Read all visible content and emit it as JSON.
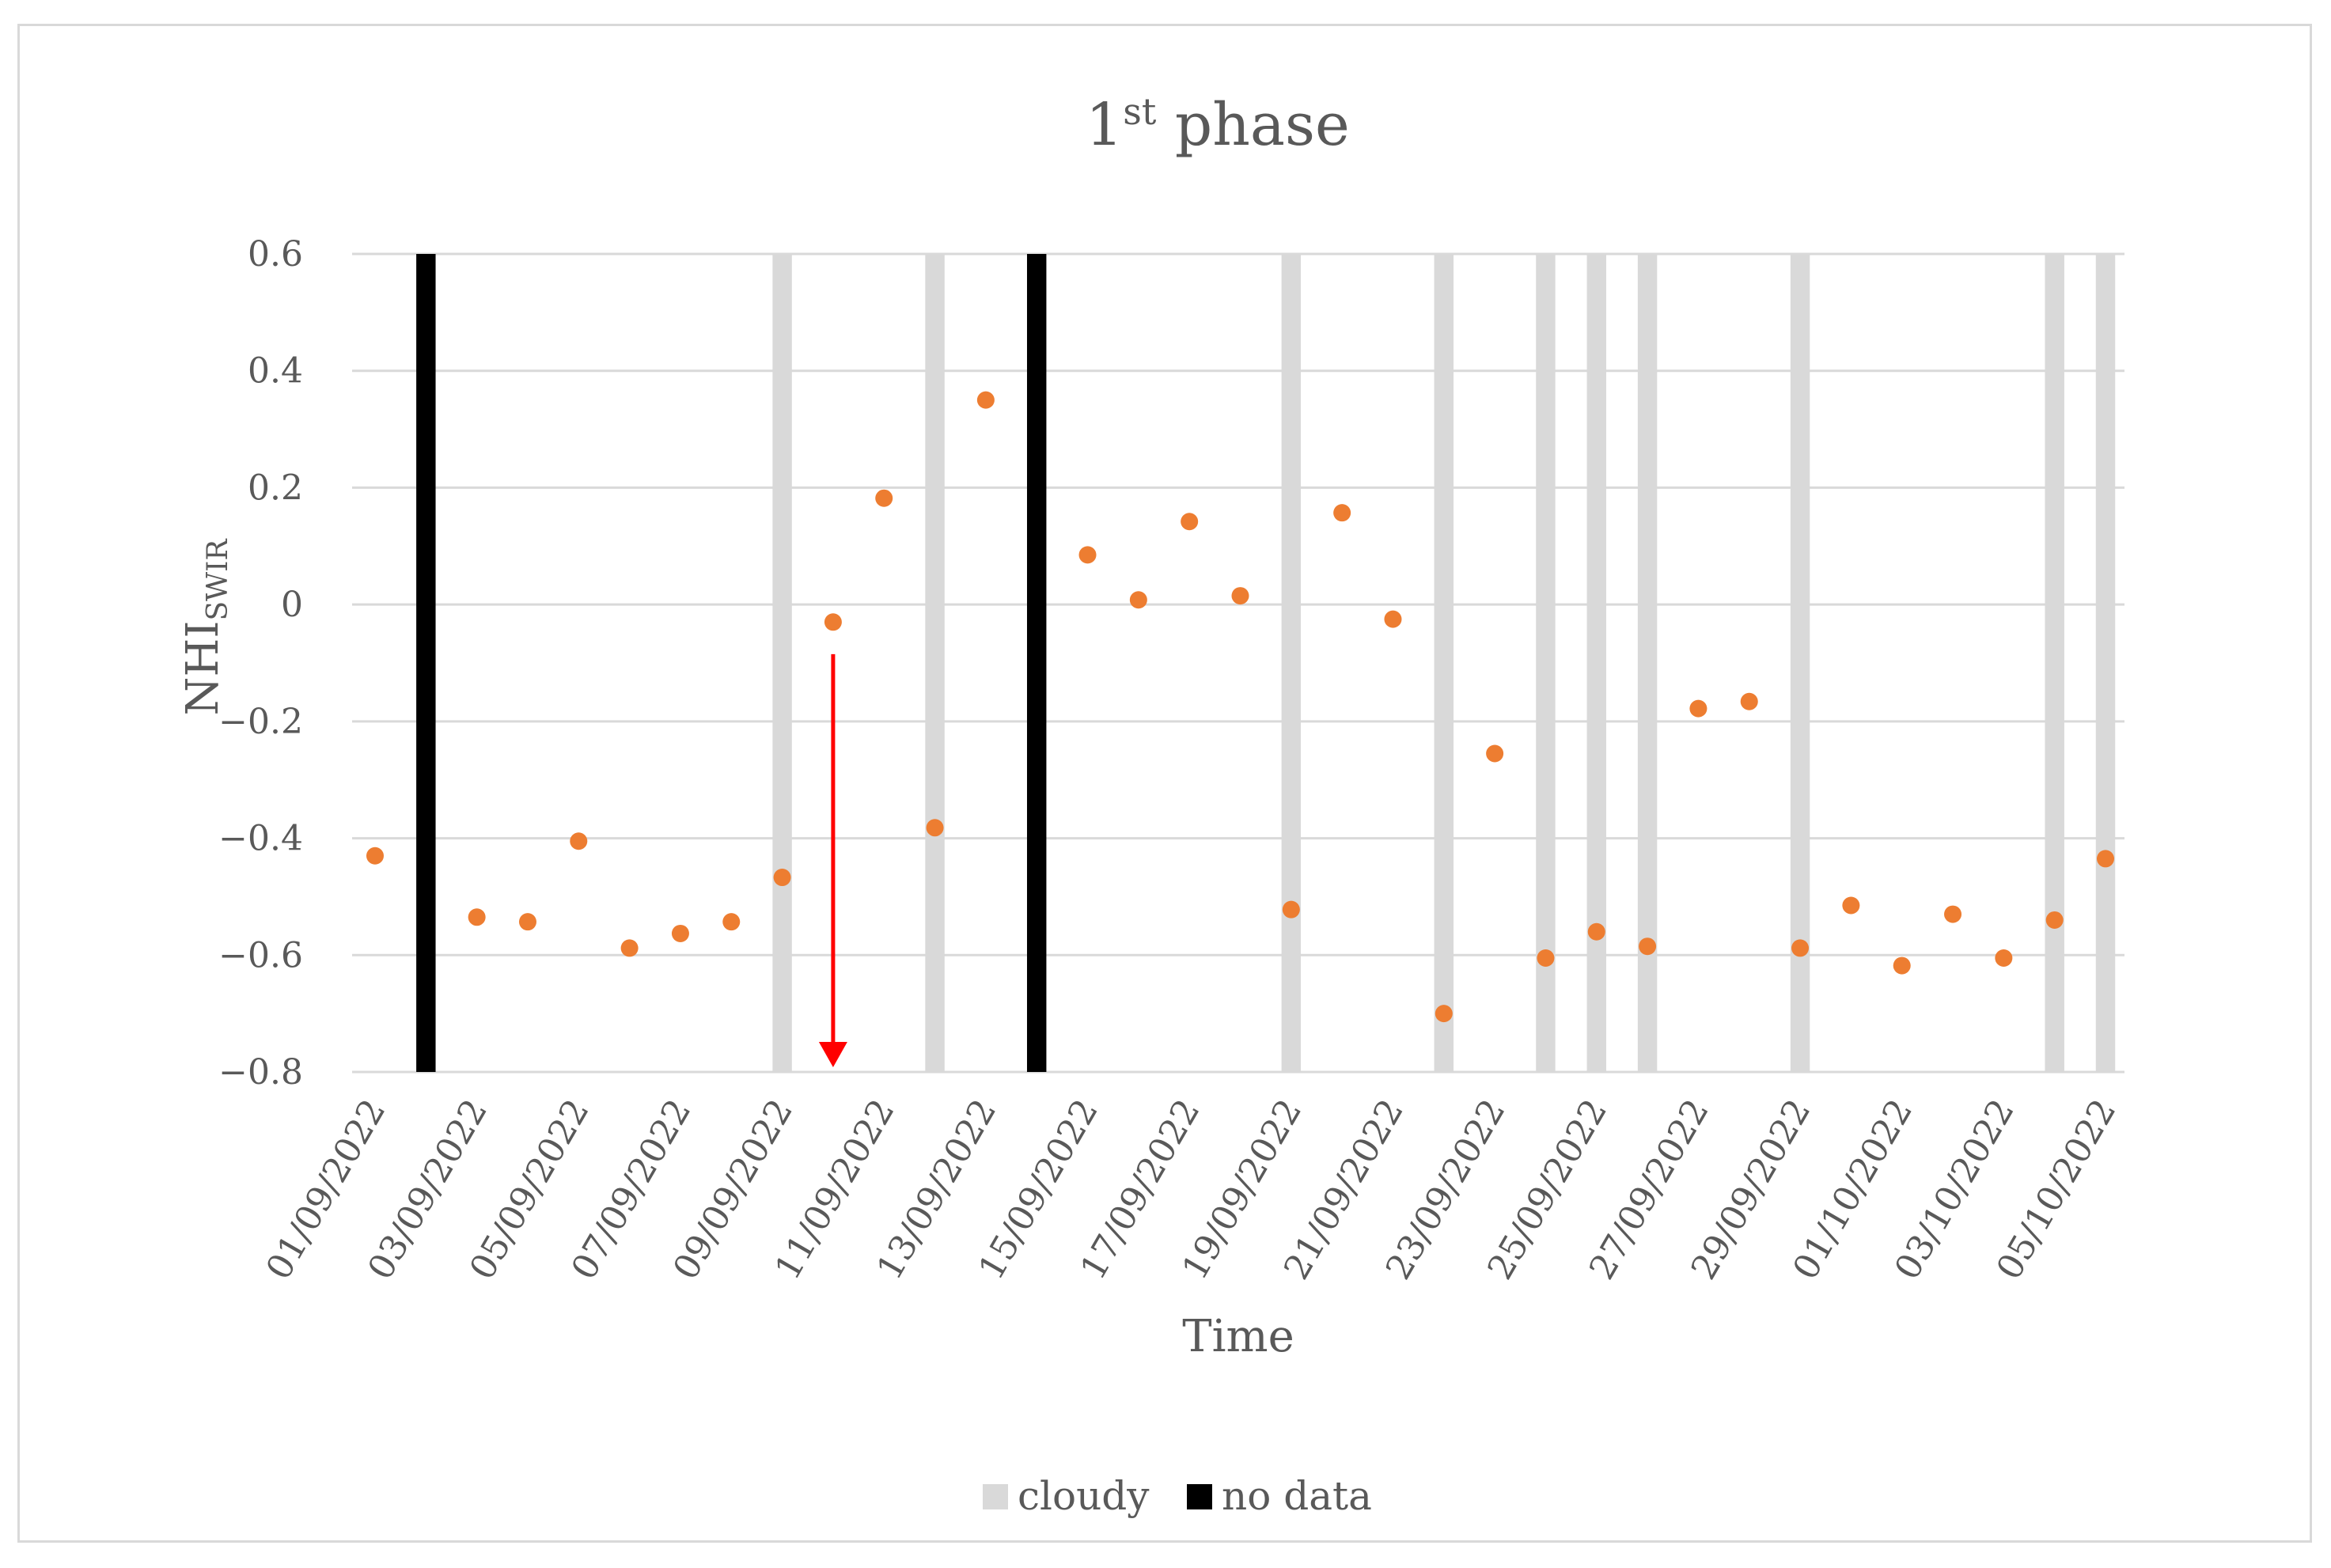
{
  "chart_data": {
    "type": "scatter",
    "title": "1st phase",
    "title_main": "1",
    "title_sup": "st",
    "title_rest": " phase",
    "xlabel": "Time",
    "ylabel": "NHI",
    "ylabel_sub": "SWIR",
    "ylim": [
      -0.8,
      0.6
    ],
    "yticks": [
      0.6,
      0.4,
      0.2,
      0,
      -0.2,
      -0.4,
      -0.6,
      -0.8
    ],
    "ytick_labels": [
      "0.6",
      "0.4",
      "0.2",
      "0",
      "−0.2",
      "−0.4",
      "−0.6",
      "−0.8"
    ],
    "xlim": [
      "2022-09-01",
      "2022-10-05"
    ],
    "xtick_labels": [
      "01/09/2022",
      "03/09/2022",
      "05/09/2022",
      "07/09/2022",
      "09/09/2022",
      "11/09/2022",
      "13/09/2022",
      "15/09/2022",
      "17/09/2022",
      "19/09/2022",
      "21/09/2022",
      "23/09/2022",
      "25/09/2022",
      "27/09/2022",
      "29/09/2022",
      "01/10/2022",
      "03/10/2022",
      "05/10/2022"
    ],
    "grid": true,
    "legend_position": "bottom",
    "series": [
      {
        "name": "NHI",
        "color": "#ed7d31",
        "points": [
          {
            "x": "2022-09-01",
            "y": -0.43
          },
          {
            "x": "2022-09-03",
            "y": -0.535
          },
          {
            "x": "2022-09-04",
            "y": -0.543
          },
          {
            "x": "2022-09-05",
            "y": -0.405
          },
          {
            "x": "2022-09-06",
            "y": -0.588
          },
          {
            "x": "2022-09-07",
            "y": -0.563
          },
          {
            "x": "2022-09-08",
            "y": -0.543
          },
          {
            "x": "2022-09-09",
            "y": -0.467
          },
          {
            "x": "2022-09-10",
            "y": -0.03
          },
          {
            "x": "2022-09-11",
            "y": 0.182
          },
          {
            "x": "2022-09-12",
            "y": -0.382
          },
          {
            "x": "2022-09-13",
            "y": 0.35
          },
          {
            "x": "2022-09-15",
            "y": 0.085
          },
          {
            "x": "2022-09-16",
            "y": 0.008
          },
          {
            "x": "2022-09-17",
            "y": 0.142
          },
          {
            "x": "2022-09-18",
            "y": 0.015
          },
          {
            "x": "2022-09-19",
            "y": -0.522
          },
          {
            "x": "2022-09-20",
            "y": 0.157
          },
          {
            "x": "2022-09-21",
            "y": -0.025
          },
          {
            "x": "2022-09-22",
            "y": -0.7
          },
          {
            "x": "2022-09-23",
            "y": -0.255
          },
          {
            "x": "2022-09-24",
            "y": -0.605
          },
          {
            "x": "2022-09-25",
            "y": -0.56
          },
          {
            "x": "2022-09-26",
            "y": -0.585
          },
          {
            "x": "2022-09-27",
            "y": -0.178
          },
          {
            "x": "2022-09-28",
            "y": -0.166
          },
          {
            "x": "2022-09-29",
            "y": -0.588
          },
          {
            "x": "2022-09-30",
            "y": -0.515
          },
          {
            "x": "2022-10-01",
            "y": -0.618
          },
          {
            "x": "2022-10-02",
            "y": -0.53
          },
          {
            "x": "2022-10-03",
            "y": -0.605
          },
          {
            "x": "2022-10-04",
            "y": -0.54
          },
          {
            "x": "2022-10-05",
            "y": -0.435
          }
        ]
      }
    ],
    "bars": [
      {
        "name": "cloudy",
        "color": "#d9d9d9",
        "dates": [
          "2022-09-09",
          "2022-09-12",
          "2022-09-19",
          "2022-09-22",
          "2022-09-24",
          "2022-09-25",
          "2022-09-26",
          "2022-09-29",
          "2022-10-04",
          "2022-10-05"
        ]
      },
      {
        "name": "no data",
        "color": "#000000",
        "dates": [
          "2022-09-02",
          "2022-09-14"
        ]
      }
    ],
    "annotation": {
      "type": "arrow",
      "color": "#ff0000",
      "x": "2022-09-10",
      "y_from": -0.085,
      "y_to": -0.8
    }
  },
  "legend": [
    {
      "label": "cloudy",
      "color": "#d9d9d9"
    },
    {
      "label": "no data",
      "color": "#000000"
    }
  ]
}
